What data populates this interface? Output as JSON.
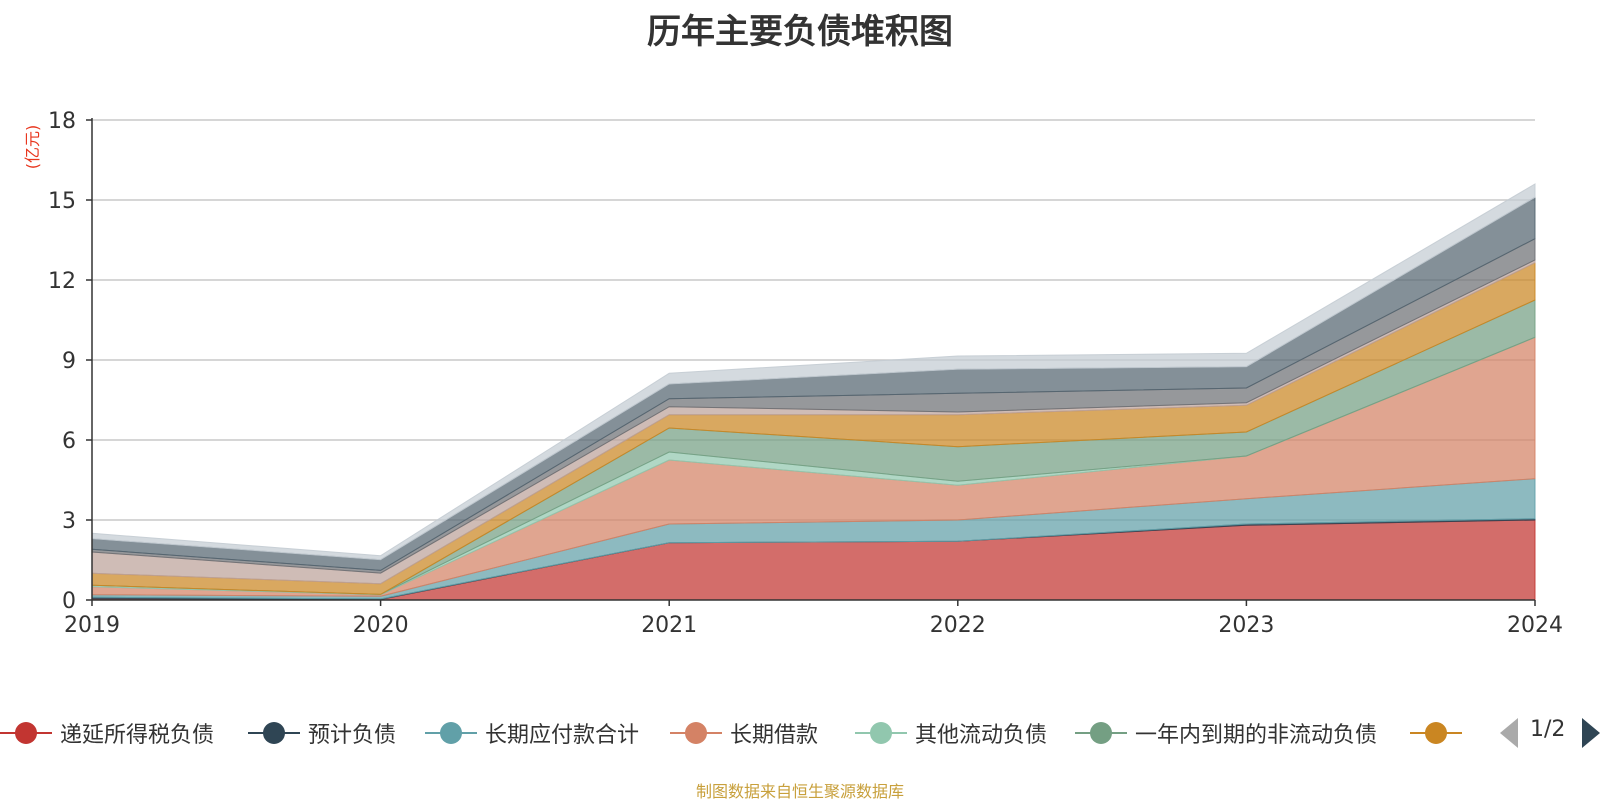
{
  "chart_data": {
    "type": "area",
    "stacked": true,
    "title": "历年主要负债堆积图",
    "unit_label": "(亿元)",
    "x": [
      "2019",
      "2020",
      "2021",
      "2022",
      "2023",
      "2024"
    ],
    "yticks": [
      "0",
      "3",
      "6",
      "9",
      "12",
      "15",
      "18"
    ],
    "ylim": [
      0,
      18
    ],
    "grid": true,
    "legend_position": "bottom",
    "series": [
      {
        "name": "递延所得税负债",
        "color": "#c23531",
        "values": [
          0.05,
          0.02,
          2.15,
          2.2,
          2.8,
          3.0
        ]
      },
      {
        "name": "预计负债",
        "color": "#2f4554",
        "values": [
          0.05,
          0.02,
          0.0,
          0.0,
          0.05,
          0.05
        ]
      },
      {
        "name": "长期应付款合计",
        "color": "#61a0a8",
        "values": [
          0.1,
          0.1,
          0.7,
          0.8,
          0.95,
          1.5
        ]
      },
      {
        "name": "长期借款",
        "color": "#d48265",
        "values": [
          0.3,
          0.05,
          2.4,
          1.3,
          1.6,
          5.3
        ]
      },
      {
        "name": "其他流动负债",
        "color": "#91c7ae",
        "values": [
          0.05,
          0.02,
          0.3,
          0.15,
          0.0,
          0.0
        ]
      },
      {
        "name": "一年内到期的非流动负债",
        "color": "#749f83",
        "values": [
          0.0,
          0.0,
          0.9,
          1.3,
          0.9,
          1.4
        ]
      },
      {
        "color": "#ca8622",
        "values": [
          0.45,
          0.4,
          0.5,
          1.2,
          1.0,
          1.4
        ]
      },
      {
        "color": "#bda29a",
        "values": [
          0.8,
          0.4,
          0.3,
          0.1,
          0.1,
          0.1
        ]
      },
      {
        "color": "#6e7074",
        "values": [
          0.1,
          0.1,
          0.3,
          0.7,
          0.55,
          0.8
        ]
      },
      {
        "color": "#546570",
        "values": [
          0.4,
          0.4,
          0.55,
          0.9,
          0.8,
          1.55
        ]
      },
      {
        "color": "#c4ccd3",
        "values": [
          0.2,
          0.15,
          0.4,
          0.5,
          0.5,
          0.5
        ]
      }
    ]
  },
  "legend": {
    "visible_count": 7,
    "page_indicator": "1/2"
  },
  "source_note": "制图数据来自恒生聚源数据库"
}
